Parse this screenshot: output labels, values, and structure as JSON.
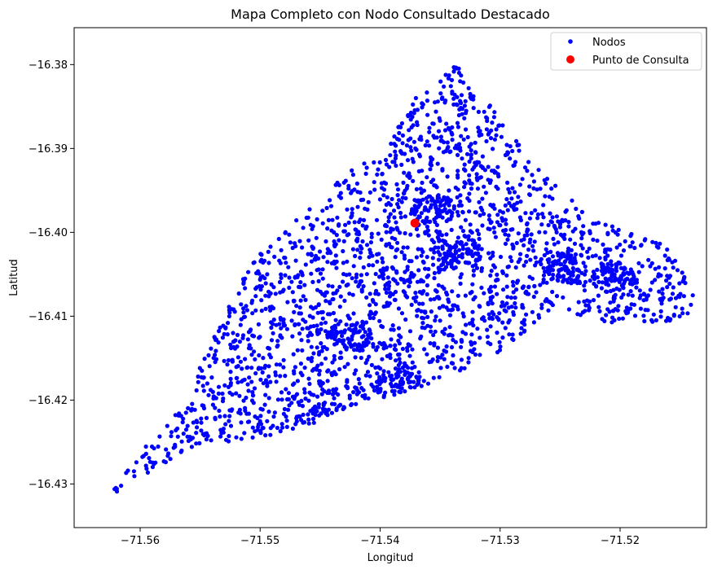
{
  "chart_data": {
    "type": "scatter",
    "title": "Mapa Completo con Nodo Consultado Destacado",
    "xlabel": "Longitud",
    "ylabel": "Latitud",
    "xlim": [
      -71.5655,
      -71.5128
    ],
    "ylim": [
      -16.4352,
      -16.3756
    ],
    "xticks": [
      -71.56,
      -71.55,
      -71.54,
      -71.53,
      -71.52
    ],
    "xtick_labels": [
      "−71.56",
      "−71.55",
      "−71.54",
      "−71.53",
      "−71.52"
    ],
    "yticks": [
      -16.43,
      -16.42,
      -16.41,
      -16.4,
      -16.39,
      -16.38
    ],
    "ytick_labels": [
      "−16.43",
      "−16.42",
      "−16.41",
      "−16.40",
      "−16.39",
      "−16.38"
    ],
    "grid": false,
    "legend_position": "top-right",
    "series": [
      {
        "name": "Nodos",
        "color": "#0000ff",
        "marker": "circle-small",
        "boundary_x": [
          -71.5635,
          -71.5565,
          -71.5525,
          -71.5505,
          -71.5455,
          -71.5425,
          -71.5395,
          -71.5375,
          -71.5355,
          -71.5335,
          -71.5275,
          -71.5225,
          -71.5165,
          -71.5135,
          -71.5145,
          -71.5175,
          -71.5215,
          -71.5255,
          -71.5305,
          -71.5345,
          -71.5385,
          -71.5435,
          -71.5455,
          -71.5495,
          -71.5555,
          -71.5635
        ],
        "boundary_y": [
          -16.4322,
          -16.4205,
          -16.4083,
          -16.4033,
          -16.3963,
          -16.3923,
          -16.3903,
          -16.3843,
          -16.3826,
          -16.3796,
          -16.3913,
          -16.3983,
          -16.4013,
          -16.4063,
          -16.4103,
          -16.4108,
          -16.4108,
          -16.4088,
          -16.4153,
          -16.4173,
          -16.4193,
          -16.4213,
          -16.4228,
          -16.4243,
          -16.4255,
          -16.4322
        ],
        "hotspots_x": [
          -71.5245,
          -71.5205,
          -71.5355,
          -71.5425,
          -71.5385,
          -71.5335,
          -71.5442
        ],
        "hotspots_y": [
          -16.4043,
          -16.4053,
          -16.3973,
          -16.4123,
          -16.4183,
          -16.4023,
          -16.4221
        ]
      },
      {
        "name": "Punto de Consulta",
        "color": "#ff0000",
        "marker": "circle-large",
        "x": [
          -71.5371
        ],
        "y": [
          -16.3989
        ]
      }
    ]
  }
}
